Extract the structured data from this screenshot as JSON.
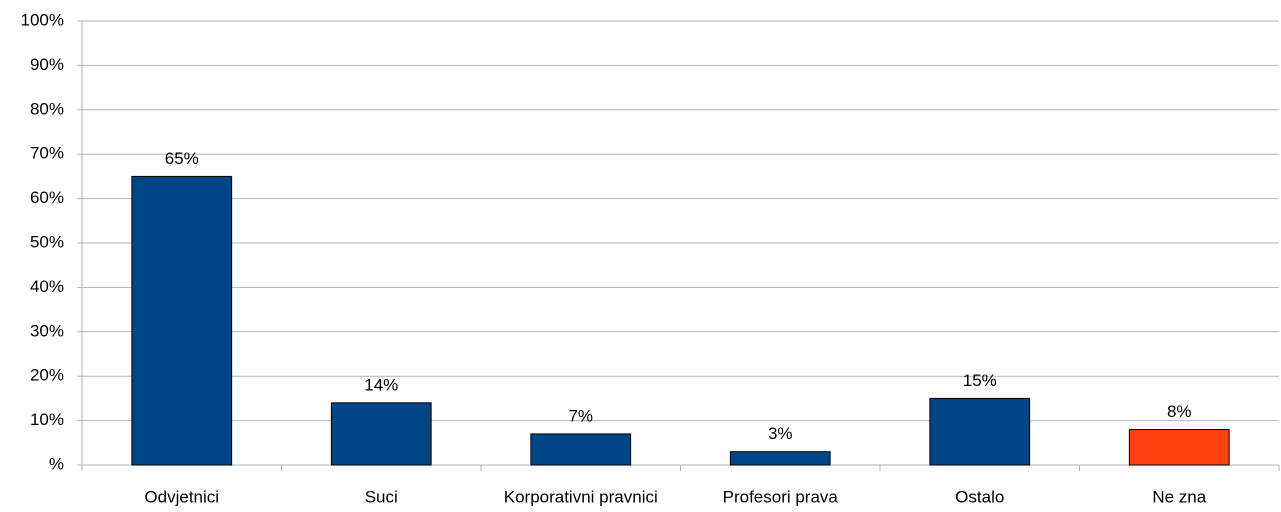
{
  "chart_data": {
    "type": "bar",
    "categories": [
      "Odvjetnici",
      "Suci",
      "Korporativni pravnici",
      "Profesori prava",
      "Ostalo",
      "Ne zna"
    ],
    "values": [
      65,
      14,
      7,
      3,
      15,
      8
    ],
    "value_labels": [
      "65%",
      "14%",
      "7%",
      "3%",
      "15%",
      "8%"
    ],
    "colors": [
      "#004586",
      "#004586",
      "#004586",
      "#004586",
      "#004586",
      "#ff420e"
    ],
    "ylim": [
      0,
      100
    ],
    "yticks": [
      {
        "value": 0,
        "label": "%"
      },
      {
        "value": 10,
        "label": "10%"
      },
      {
        "value": 20,
        "label": "20%"
      },
      {
        "value": 30,
        "label": "30%"
      },
      {
        "value": 40,
        "label": "40%"
      },
      {
        "value": 50,
        "label": "50%"
      },
      {
        "value": 60,
        "label": "60%"
      },
      {
        "value": 70,
        "label": "70%"
      },
      {
        "value": 80,
        "label": "80%"
      },
      {
        "value": 90,
        "label": "90%"
      },
      {
        "value": 100,
        "label": "100%"
      }
    ],
    "grid": true
  }
}
